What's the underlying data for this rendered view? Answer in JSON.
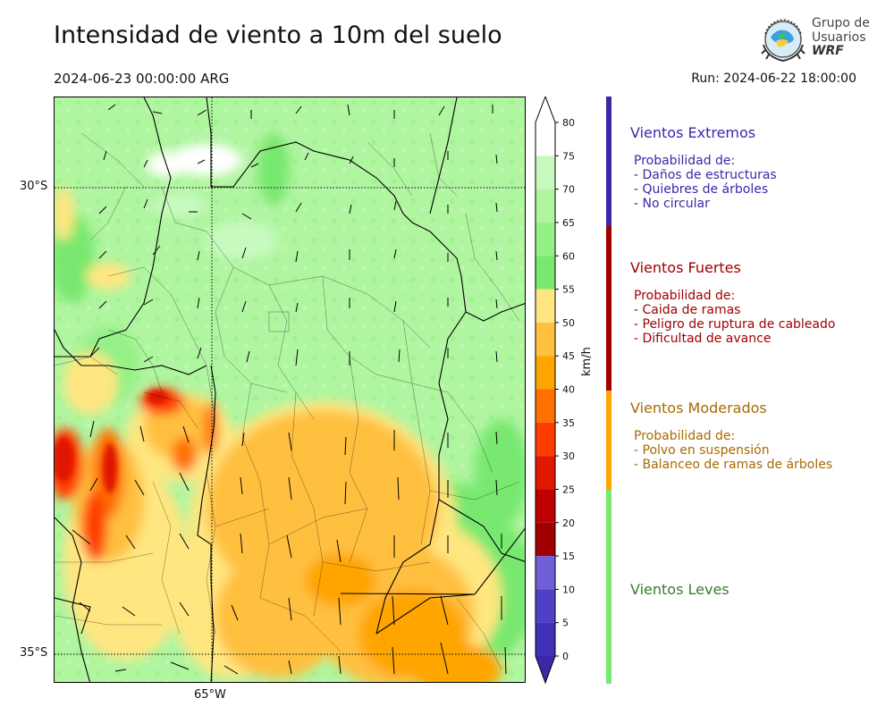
{
  "header": {
    "title": "Intensidad de viento a 10m del suelo",
    "datetime": "2024-06-23 00:00:00 ARG",
    "run": "Run: 2024-06-22 18:00:00"
  },
  "logo": {
    "line1": "Grupo de",
    "line2": "Usuarios",
    "line3": "WRF",
    "icon": "globe-emblem-icon"
  },
  "axes": {
    "lat_labels": [
      "30°S",
      "35°S"
    ],
    "lon_labels": [
      "65°W"
    ]
  },
  "colorbar": {
    "unit": "km/h",
    "ticks": [
      "0",
      "5",
      "10",
      "15",
      "20",
      "25",
      "30",
      "35",
      "40",
      "45",
      "50",
      "55",
      "60",
      "65",
      "70",
      "75",
      "80"
    ],
    "colors": [
      "#ffffff",
      "#c8fac0",
      "#b0f5a0",
      "#96f088",
      "#78e870",
      "#ffe680",
      "#ffc040",
      "#ffa500",
      "#ff7000",
      "#ff3c00",
      "#e01800",
      "#c00000",
      "#a00000",
      "#7060d8",
      "#5040c8",
      "#4030b8",
      "#3a28a8"
    ]
  },
  "legend": {
    "categories": [
      {
        "title": "Vientos Extremos",
        "color": "#3a28a8",
        "prob_label": "Probabilidad de:",
        "items": [
          "- Daños de estructuras",
          "- Quiebres de árboles",
          "- No circular"
        ]
      },
      {
        "title": "Vientos Fuertes",
        "color": "#a00000",
        "prob_label": "Probabilidad de:",
        "items": [
          "- Caida de ramas",
          "- Peligro de ruptura de cableado",
          "- Dificultad de avance"
        ]
      },
      {
        "title": "Vientos Moderados",
        "color": "#a86a00",
        "prob_label": "Probabilidad de:",
        "items": [
          "- Polvo en suspensión",
          "- Balanceo de ramas de árboles"
        ]
      },
      {
        "title": "Vientos Leves",
        "color": "#3a7a30",
        "prob_label": "",
        "items": []
      }
    ]
  }
}
